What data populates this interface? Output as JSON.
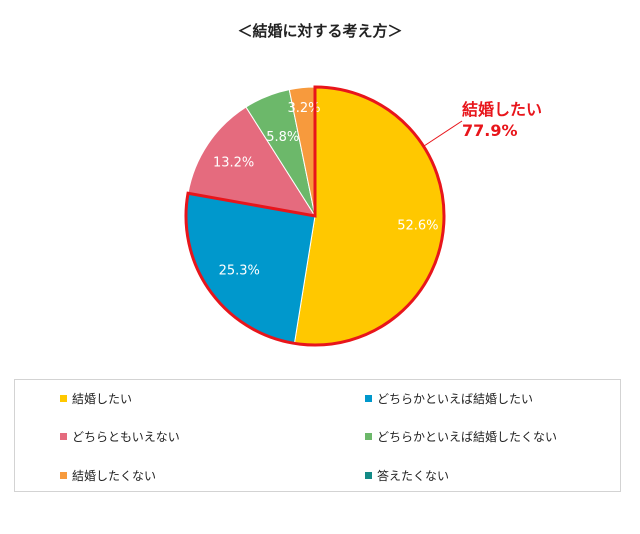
{
  "chart_data": {
    "type": "pie",
    "title": "＜結婚に対する考え方＞",
    "slices": [
      {
        "label": "結婚したい",
        "value": 52.6,
        "value_label": "52.6%",
        "color": "#ffc800"
      },
      {
        "label": "どちらかといえば結婚したい",
        "value": 25.3,
        "value_label": "25.3%",
        "color": "#0098cc"
      },
      {
        "label": "どちらともいえない",
        "value": 13.2,
        "value_label": "13.2%",
        "color": "#e56b7e"
      },
      {
        "label": "どちらかといえば結婚したくない",
        "value": 5.8,
        "value_label": "5.8%",
        "color": "#6cb86a"
      },
      {
        "label": "結婚したくない",
        "value": 3.2,
        "value_label": "3.2%",
        "color": "#f79a3d"
      },
      {
        "label": "答えたくない",
        "value": 0,
        "value_label": "",
        "color": "#138a86"
      }
    ],
    "highlight": {
      "label": "結婚したい",
      "value_label": "77.9%",
      "outline_color": "#e8151b"
    },
    "legend_position": "bottom"
  }
}
